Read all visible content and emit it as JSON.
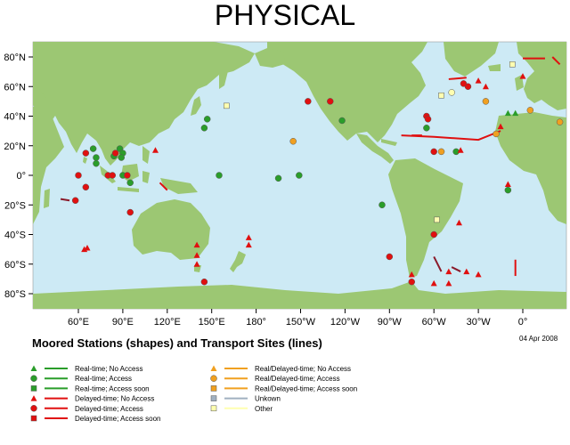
{
  "title": "PHYSICAL",
  "date": "04 Apr 2008",
  "legend_title": "Moored Stations (shapes) and Transport Sites (lines)",
  "colors": {
    "ocean": "#cdeaf5",
    "land": "#9cc773",
    "realtime_no_access": "#2a9d2a",
    "realtime_access": "#2a9d2a",
    "realtime_access_soon": "#2a9d2a",
    "delayed_no_access": "#e01010",
    "delayed_access": "#e01010",
    "delayed_access_soon": "#8a1a2a",
    "real_delayed": "#f0a020",
    "unknown": "#a0b0c0",
    "other": "#ffffb0"
  },
  "axes": {
    "lat_labels": [
      "80°N",
      "60°N",
      "40°N",
      "20°N",
      "0°",
      "20°S",
      "40°S",
      "60°S",
      "80°S"
    ],
    "lon_labels": [
      "60°E",
      "90°E",
      "120°E",
      "150°E",
      "180°",
      "150°W",
      "120°W",
      "90°W",
      "60°W",
      "30°W",
      "0°"
    ]
  },
  "legend": [
    {
      "label": "Real-time; No Access",
      "shape": "triangle",
      "color": "realtime_no_access"
    },
    {
      "label": "Real-time; Access",
      "shape": "circle",
      "color": "realtime_access"
    },
    {
      "label": "Real-time; Access soon",
      "shape": "square",
      "color": "realtime_access_soon"
    },
    {
      "label": "Delayed-time; No Access",
      "shape": "triangle",
      "color": "delayed_no_access"
    },
    {
      "label": "Delayed-time; Access",
      "shape": "circle",
      "color": "delayed_access"
    },
    {
      "label": "Delayed-time; Access soon",
      "shape": "square",
      "color": "delayed_access"
    },
    {
      "label": "Real/Delayed-time; No Access",
      "shape": "triangle",
      "color": "real_delayed"
    },
    {
      "label": "Real/Delayed-time; Access",
      "shape": "circle",
      "color": "real_delayed"
    },
    {
      "label": "Real/Delayed-time; Access soon",
      "shape": "square",
      "color": "real_delayed"
    },
    {
      "label": "Unkown",
      "shape": "square",
      "color": "unknown"
    },
    {
      "label": "Other",
      "shape": "square",
      "color": "other"
    }
  ],
  "stations": [
    {
      "lon": 70,
      "lat": 18,
      "shape": "circle",
      "color": "realtime_access"
    },
    {
      "lon": 72,
      "lat": 12,
      "shape": "circle",
      "color": "realtime_access"
    },
    {
      "lon": 88,
      "lat": 18,
      "shape": "circle",
      "color": "realtime_access"
    },
    {
      "lon": 90,
      "lat": 15,
      "shape": "circle",
      "color": "realtime_access"
    },
    {
      "lon": 89,
      "lat": 12,
      "shape": "circle",
      "color": "realtime_access"
    },
    {
      "lon": 84,
      "lat": 13,
      "shape": "circle",
      "color": "realtime_access"
    },
    {
      "lon": 90,
      "lat": 0,
      "shape": "circle",
      "color": "realtime_access"
    },
    {
      "lon": 95,
      "lat": -5,
      "shape": "circle",
      "color": "realtime_access"
    },
    {
      "lon": 147,
      "lat": 38,
      "shape": "circle",
      "color": "realtime_access"
    },
    {
      "lon": 145,
      "lat": 32,
      "shape": "circle",
      "color": "realtime_access"
    },
    {
      "lon": 155,
      "lat": 0,
      "shape": "circle",
      "color": "realtime_access"
    },
    {
      "lon": 195,
      "lat": -2,
      "shape": "circle",
      "color": "realtime_access"
    },
    {
      "lon": 209,
      "lat": 0,
      "shape": "circle",
      "color": "realtime_access"
    },
    {
      "lon": 238,
      "lat": 37,
      "shape": "circle",
      "color": "realtime_access"
    },
    {
      "lon": 265,
      "lat": -20,
      "shape": "circle",
      "color": "realtime_access"
    },
    {
      "lon": 295,
      "lat": 32,
      "shape": "circle",
      "color": "realtime_access"
    },
    {
      "lon": 315,
      "lat": 16,
      "shape": "circle",
      "color": "realtime_access"
    },
    {
      "lon": 350,
      "lat": -10,
      "shape": "circle",
      "color": "realtime_access"
    },
    {
      "lon": 72,
      "lat": 8,
      "shape": "circle",
      "color": "realtime_access"
    },
    {
      "lon": 350,
      "lat": 42,
      "shape": "triangle",
      "color": "realtime_no_access"
    },
    {
      "lon": 355,
      "lat": 42,
      "shape": "triangle",
      "color": "realtime_no_access"
    },
    {
      "lon": 112,
      "lat": 17,
      "shape": "triangle",
      "color": "delayed_no_access"
    },
    {
      "lon": 140,
      "lat": -47,
      "shape": "triangle",
      "color": "delayed_no_access"
    },
    {
      "lon": 140,
      "lat": -54,
      "shape": "triangle",
      "color": "delayed_no_access"
    },
    {
      "lon": 140,
      "lat": -60,
      "shape": "triangle",
      "color": "delayed_no_access"
    },
    {
      "lon": 175,
      "lat": -42,
      "shape": "triangle",
      "color": "delayed_no_access"
    },
    {
      "lon": 175,
      "lat": -47,
      "shape": "triangle",
      "color": "delayed_no_access"
    },
    {
      "lon": 64,
      "lat": -50,
      "shape": "triangle",
      "color": "delayed_no_access"
    },
    {
      "lon": 66,
      "lat": -49,
      "shape": "triangle",
      "color": "delayed_no_access"
    },
    {
      "lon": 317,
      "lat": -32,
      "shape": "triangle",
      "color": "delayed_no_access"
    },
    {
      "lon": 318,
      "lat": 17,
      "shape": "triangle",
      "color": "delayed_no_access"
    },
    {
      "lon": 310,
      "lat": -65,
      "shape": "triangle",
      "color": "delayed_no_access"
    },
    {
      "lon": 322,
      "lat": -65,
      "shape": "triangle",
      "color": "delayed_no_access"
    },
    {
      "lon": 330,
      "lat": -67,
      "shape": "triangle",
      "color": "delayed_no_access"
    },
    {
      "lon": 310,
      "lat": -73,
      "shape": "triangle",
      "color": "delayed_no_access"
    },
    {
      "lon": 300,
      "lat": -73,
      "shape": "triangle",
      "color": "delayed_no_access"
    },
    {
      "lon": 285,
      "lat": -67,
      "shape": "triangle",
      "color": "delayed_no_access"
    },
    {
      "lon": 350,
      "lat": -6,
      "shape": "triangle",
      "color": "delayed_no_access"
    },
    {
      "lon": 345,
      "lat": 33,
      "shape": "triangle",
      "color": "delayed_no_access"
    },
    {
      "lon": 0,
      "lat": 67,
      "shape": "triangle",
      "color": "delayed_no_access"
    },
    {
      "lon": 330,
      "lat": 64,
      "shape": "triangle",
      "color": "delayed_no_access"
    },
    {
      "lon": 335,
      "lat": 60,
      "shape": "triangle",
      "color": "delayed_no_access"
    },
    {
      "lon": 58,
      "lat": -17,
      "shape": "circle",
      "color": "delayed_access"
    },
    {
      "lon": 60,
      "lat": 0,
      "shape": "circle",
      "color": "delayed_access"
    },
    {
      "lon": 65,
      "lat": -8,
      "shape": "circle",
      "color": "delayed_access"
    },
    {
      "lon": 65,
      "lat": 15,
      "shape": "circle",
      "color": "delayed_access"
    },
    {
      "lon": 80,
      "lat": 0,
      "shape": "circle",
      "color": "delayed_access"
    },
    {
      "lon": 83,
      "lat": 0,
      "shape": "circle",
      "color": "delayed_access"
    },
    {
      "lon": 93,
      "lat": 0,
      "shape": "circle",
      "color": "delayed_access"
    },
    {
      "lon": 95,
      "lat": -25,
      "shape": "circle",
      "color": "delayed_access"
    },
    {
      "lon": 85,
      "lat": 15,
      "shape": "circle",
      "color": "delayed_access"
    },
    {
      "lon": 145,
      "lat": -72,
      "shape": "circle",
      "color": "delayed_access"
    },
    {
      "lon": 215,
      "lat": 50,
      "shape": "circle",
      "color": "delayed_access"
    },
    {
      "lon": 230,
      "lat": 50,
      "shape": "circle",
      "color": "delayed_access"
    },
    {
      "lon": 270,
      "lat": -55,
      "shape": "circle",
      "color": "delayed_access"
    },
    {
      "lon": 295,
      "lat": 40,
      "shape": "circle",
      "color": "delayed_access"
    },
    {
      "lon": 296,
      "lat": 38,
      "shape": "circle",
      "color": "delayed_access"
    },
    {
      "lon": 300,
      "lat": -40,
      "shape": "circle",
      "color": "delayed_access"
    },
    {
      "lon": 285,
      "lat": -72,
      "shape": "circle",
      "color": "delayed_access"
    },
    {
      "lon": 300,
      "lat": 16,
      "shape": "circle",
      "color": "delayed_access"
    },
    {
      "lon": 323,
      "lat": 60,
      "shape": "circle",
      "color": "delayed_access"
    },
    {
      "lon": 320,
      "lat": 62,
      "shape": "circle",
      "color": "delayed_access"
    },
    {
      "lon": 205,
      "lat": 23,
      "shape": "circle",
      "color": "real_delayed"
    },
    {
      "lon": 305,
      "lat": 16,
      "shape": "circle",
      "color": "real_delayed"
    },
    {
      "lon": 335,
      "lat": 50,
      "shape": "circle",
      "color": "real_delayed"
    },
    {
      "lon": 342,
      "lat": 28,
      "shape": "circle",
      "color": "real_delayed"
    },
    {
      "lon": 5,
      "lat": 44,
      "shape": "circle",
      "color": "real_delayed"
    },
    {
      "lon": 25,
      "lat": 36,
      "shape": "circle",
      "color": "real_delayed"
    },
    {
      "lon": 160,
      "lat": 47,
      "shape": "square",
      "color": "other"
    },
    {
      "lon": 302,
      "lat": -30,
      "shape": "square",
      "color": "other"
    },
    {
      "lon": 305,
      "lat": 54,
      "shape": "square",
      "color": "other"
    },
    {
      "lon": 353,
      "lat": 75,
      "shape": "square",
      "color": "other"
    },
    {
      "lon": 312,
      "lat": 56,
      "shape": "circle",
      "color": "other"
    }
  ],
  "transport_lines": [
    {
      "points": [
        [
          278,
          27
        ],
        [
          300,
          26
        ],
        [
          330,
          24
        ],
        [
          345,
          30
        ]
      ],
      "color": "delayed_no_access"
    },
    {
      "points": [
        [
          310,
          65
        ],
        [
          322,
          66
        ]
      ],
      "color": "delayed_no_access"
    },
    {
      "points": [
        [
          0,
          79
        ],
        [
          15,
          79
        ]
      ],
      "color": "delayed_no_access"
    },
    {
      "points": [
        [
          20,
          80
        ],
        [
          25,
          75
        ]
      ],
      "color": "delayed_no_access"
    },
    {
      "points": [
        [
          355,
          -57
        ],
        [
          355,
          -68
        ]
      ],
      "color": "delayed_no_access"
    },
    {
      "points": [
        [
          115,
          -5
        ],
        [
          120,
          -10
        ]
      ],
      "color": "delayed_no_access"
    },
    {
      "points": [
        [
          300,
          -55
        ],
        [
          305,
          -65
        ]
      ],
      "color": "delayed_access_soon"
    },
    {
      "points": [
        [
          312,
          -62
        ],
        [
          318,
          -65
        ]
      ],
      "color": "delayed_access_soon"
    },
    {
      "points": [
        [
          48,
          -16
        ],
        [
          54,
          -17
        ]
      ],
      "color": "delayed_access_soon"
    },
    {
      "points": [
        [
          285,
          27
        ],
        [
          292,
          27
        ]
      ],
      "color": "delayed_no_access"
    }
  ]
}
